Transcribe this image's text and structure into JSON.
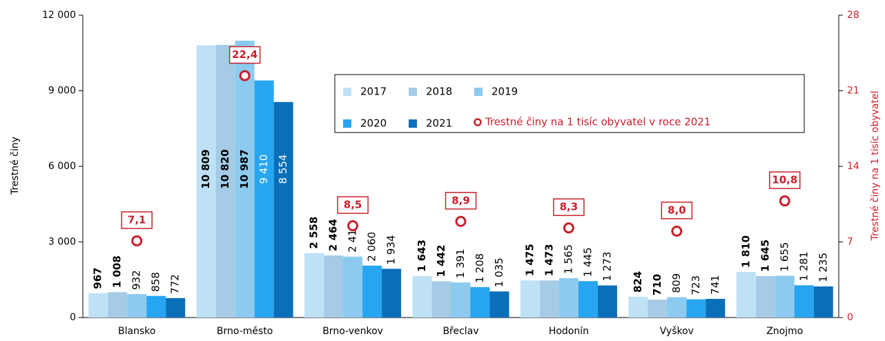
{
  "chart_data": {
    "type": "bar",
    "categories": [
      "Blansko",
      "Brno-město",
      "Brno-venkov",
      "Břeclav",
      "Hodonín",
      "Vyškov",
      "Znojmo"
    ],
    "series": [
      {
        "name": "2017",
        "color": "#bfe1f6",
        "values": [
          967,
          10809,
          2558,
          1643,
          1475,
          824,
          1810
        ],
        "value_labels": [
          "967",
          "10 809",
          "2 558",
          "1 643",
          "1 475",
          "824",
          "1 810"
        ]
      },
      {
        "name": "2018",
        "color": "#a5cbe6",
        "values": [
          1008,
          10820,
          2464,
          1442,
          1473,
          710,
          1645
        ],
        "value_labels": [
          "1 008",
          "10 820",
          "2 464",
          "1 442",
          "1 473",
          "710",
          "1 645"
        ]
      },
      {
        "name": "2019",
        "color": "#8ccaef",
        "values": [
          932,
          10987,
          2418,
          1391,
          1565,
          809,
          1655
        ],
        "value_labels": [
          "932",
          "10 987",
          "2 418",
          "1 391",
          "1 565",
          "809",
          "1 655"
        ]
      },
      {
        "name": "2020",
        "color": "#27a5f0",
        "values": [
          858,
          9410,
          2060,
          1208,
          1445,
          723,
          1281
        ],
        "value_labels": [
          "858",
          "9 410",
          "2 060",
          "1 208",
          "1 445",
          "723",
          "1 281"
        ]
      },
      {
        "name": "2021",
        "color": "#0a6fb9",
        "values": [
          772,
          8554,
          1934,
          1035,
          1273,
          741,
          1235
        ],
        "value_labels": [
          "772",
          "8 554",
          "1 934",
          "1 035",
          "1 273",
          "741",
          "1 235"
        ]
      },
      {
        "name": "Trestné činy na 1 tisíc obyvatel v roce 2021",
        "color": "#c8202c",
        "type": "scatter",
        "axis": "y2",
        "values": [
          7.1,
          22.4,
          8.5,
          8.9,
          8.3,
          8.0,
          10.8
        ],
        "value_labels": [
          "7,1",
          "22,4",
          "8,5",
          "8,9",
          "8,3",
          "8,0",
          "10,8"
        ]
      }
    ],
    "y_label": "Trestné činy",
    "y2_label": "Trestné činy na 1 tisíc obyvatel",
    "ylim": [
      0,
      12000
    ],
    "yticks": [
      0,
      {
        "value": 3000,
        "label": "3 000"
      },
      {
        "value": 6000,
        "label": "6 000"
      },
      {
        "value": 9000,
        "label": "9 000"
      },
      {
        "value": 12000,
        "label": "12 000"
      }
    ],
    "y2lim": [
      0,
      28
    ],
    "y2ticks": [
      0,
      7,
      14,
      21,
      28
    ]
  }
}
